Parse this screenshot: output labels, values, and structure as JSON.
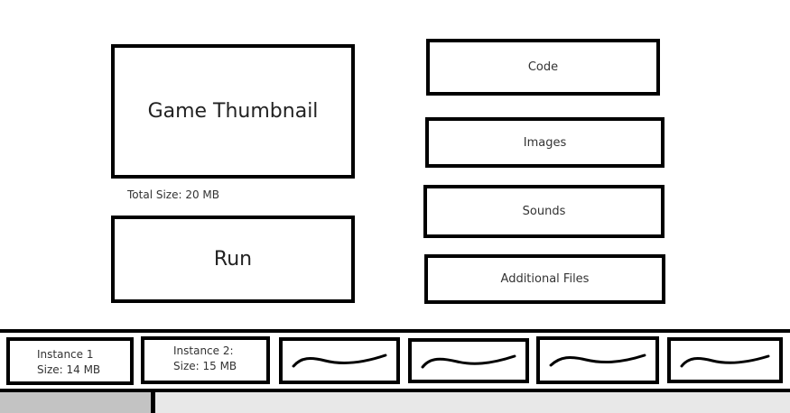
{
  "main": {
    "thumbnail_label": "Game Thumbnail",
    "total_size": "Total Size: 20 MB",
    "run_label": "Run"
  },
  "assets": {
    "code_label": "Code",
    "images_label": "Images",
    "sounds_label": "Sounds",
    "additional_files_label": "Additional Files"
  },
  "instances": [
    {
      "name": "Instance 1",
      "size": "Size: 14 MB"
    },
    {
      "name": "Instance 2:",
      "size": "Size: 15 MB"
    },
    {
      "placeholder_icon": "squiggle-icon"
    },
    {
      "placeholder_icon": "squiggle-icon"
    },
    {
      "placeholder_icon": "squiggle-icon"
    },
    {
      "placeholder_icon": "squiggle-icon"
    }
  ],
  "colors": {
    "border": "#000000",
    "bottom_tab": "#c3c3c3",
    "bottom_bar": "#e8e8e8"
  }
}
